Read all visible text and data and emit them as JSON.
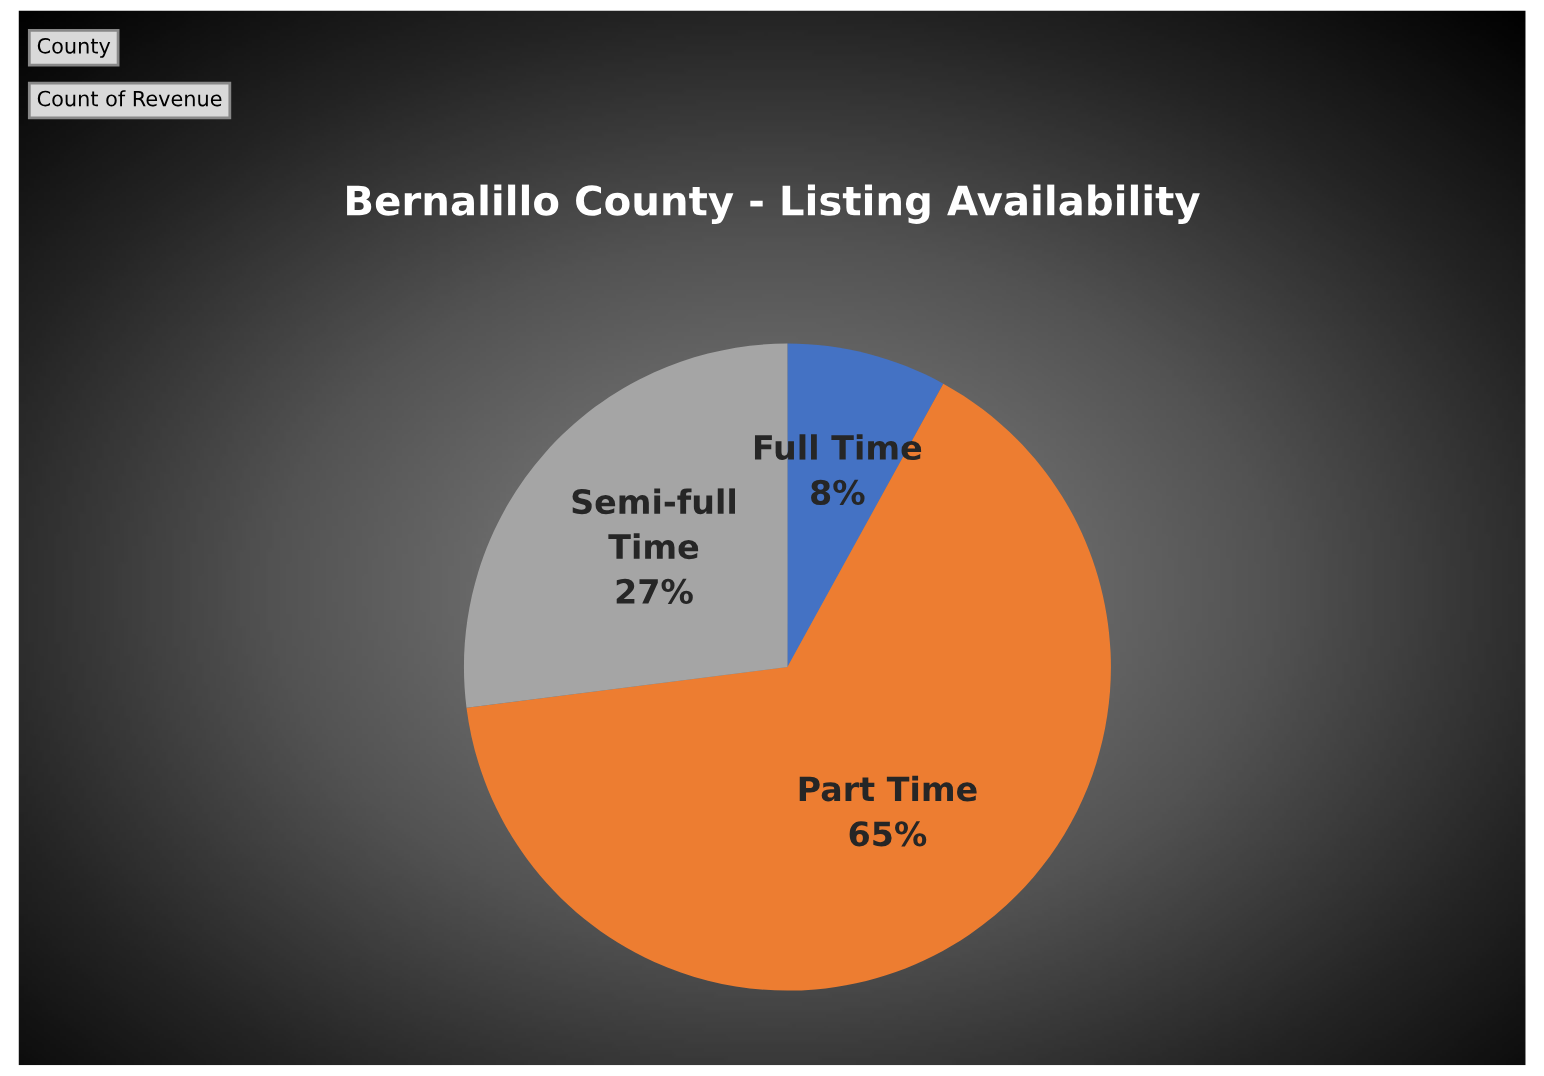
{
  "chart_data": {
    "type": "pie",
    "title": "Bernalillo County - Listing Availability",
    "categories": [
      "Full Time",
      "Part Time",
      "Semi-full Time"
    ],
    "values": [
      8,
      65,
      27
    ],
    "colors": [
      "#4472c4",
      "#ed7d31",
      "#a5a5a5"
    ],
    "value_labels": [
      "8%",
      "65%",
      "27%"
    ],
    "annotations": [
      "County",
      "Count of Revenue"
    ]
  }
}
